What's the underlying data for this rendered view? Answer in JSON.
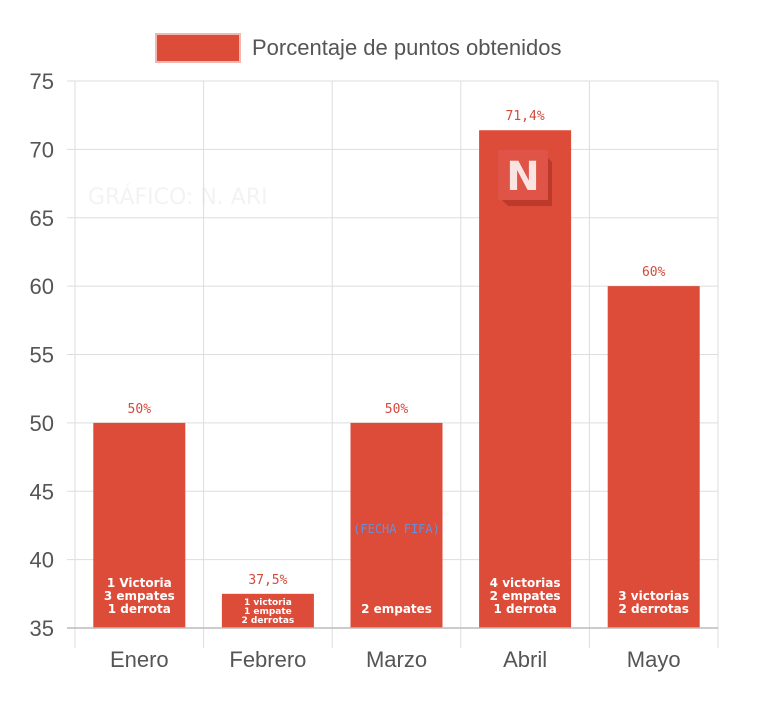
{
  "chart_data": {
    "type": "bar",
    "legend": "Porcentaje de puntos obtenidos",
    "legend_position": "top-center",
    "categories": [
      "Enero",
      "Febrero",
      "Marzo",
      "Abril",
      "Mayo"
    ],
    "values": [
      50,
      37.5,
      50,
      71.4,
      60
    ],
    "value_labels": [
      "50%",
      "37,5%",
      "50%",
      "71,4%",
      "60%"
    ],
    "bar_notes": [
      [
        "1 Victoria",
        "3 empates",
        "1 derrota"
      ],
      [
        "1 victoria",
        "1 empate",
        "2 derrotas"
      ],
      [
        "2 empates"
      ],
      [
        "4 victorias",
        "2 empates",
        "1 derrota"
      ],
      [
        "3 victorias",
        "2 derrotas"
      ]
    ],
    "annotation": "(FECHA FIFA)",
    "watermark": "GRÁFICO: N. ARI",
    "ylim": [
      35,
      75
    ],
    "yticks": [
      35,
      40,
      45,
      50,
      55,
      60,
      65,
      70,
      75
    ],
    "grid": true,
    "xlabel": "",
    "ylabel": ""
  },
  "logo_letter": "N",
  "colors": {
    "bar": "#dd4b39",
    "grid": "#dddddd",
    "text": "#555555",
    "label": "#d34a3a",
    "note": "#6b8fd6"
  }
}
